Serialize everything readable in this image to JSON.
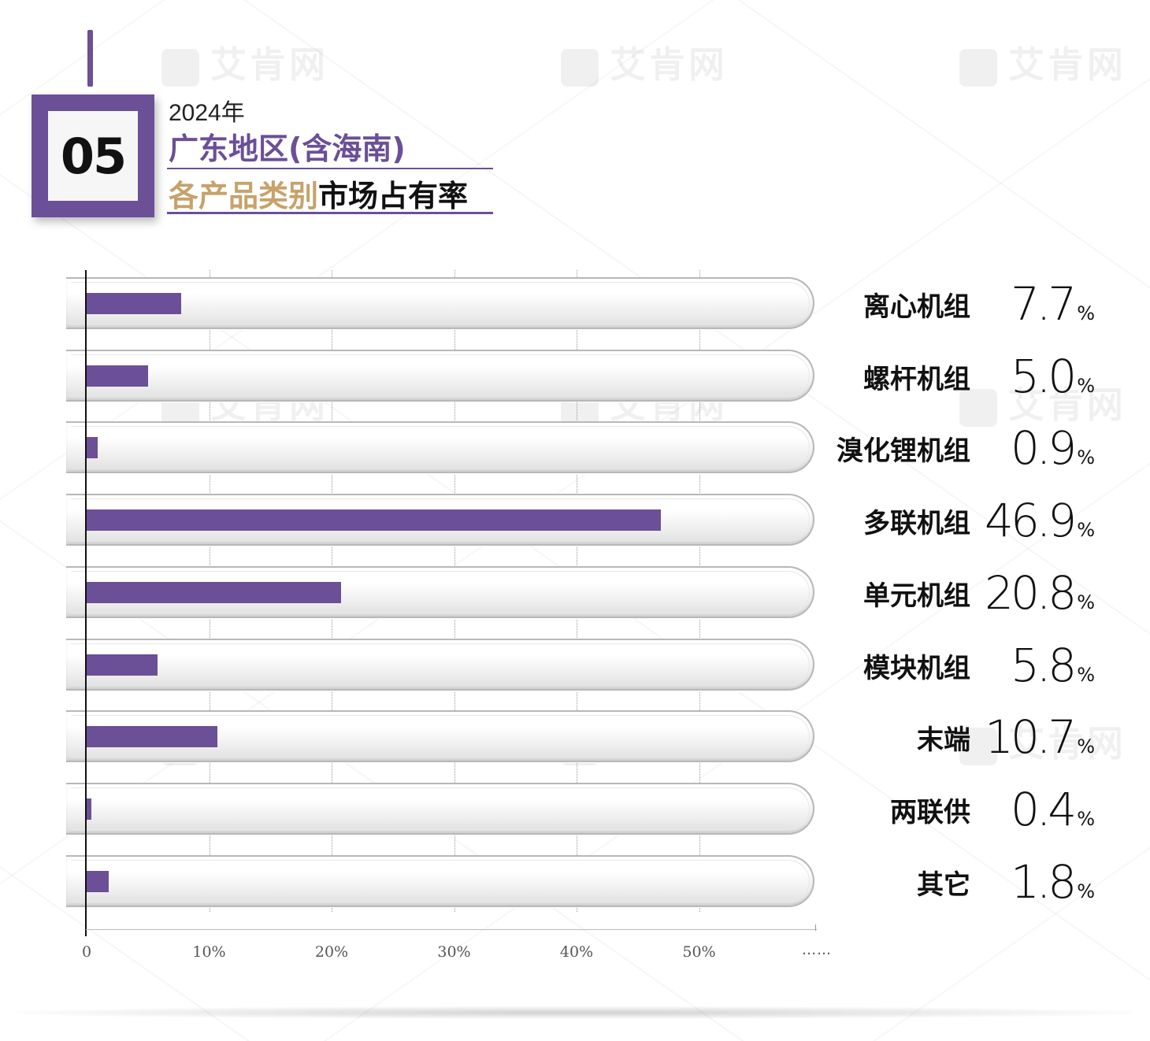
{
  "header": {
    "number": "05",
    "year": "2024年",
    "region": "广东地区(含海南)",
    "subtitle_gold": "各产品类别",
    "subtitle_dark": "市场占有率"
  },
  "watermark": "艾肯网",
  "colors": {
    "accent": "#6b4f97",
    "gold": "#c7a26a"
  },
  "chart_data": {
    "type": "bar",
    "orientation": "horizontal",
    "title": "2024年 广东地区(含海南) 各产品类别市场占有率",
    "categories": [
      "离心机组",
      "螺杆机组",
      "溴化锂机组",
      "多联机组",
      "单元机组",
      "模块机组",
      "末端",
      "两联供",
      "其它"
    ],
    "values": [
      7.7,
      5.0,
      0.9,
      46.9,
      20.8,
      5.8,
      10.7,
      0.4,
      1.8
    ],
    "value_labels": [
      "7.7",
      "5.0",
      "0.9",
      "46.9",
      "20.8",
      "5.8",
      "10.7",
      "0.4",
      "1.8"
    ],
    "value_suffix": "%",
    "x_ticks": [
      "0",
      "10%",
      "20%",
      "30%",
      "40%",
      "50%"
    ],
    "x_tick_values": [
      0,
      10,
      20,
      30,
      40,
      50
    ],
    "axis_break": "……",
    "grid": true
  }
}
